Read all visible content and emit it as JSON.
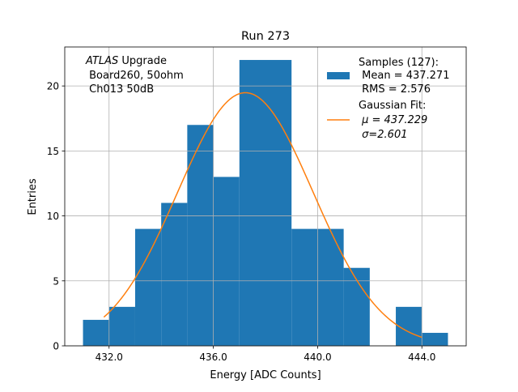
{
  "chart_data": {
    "type": "bar",
    "title": "Run 273",
    "xlabel": "Energy [ADC Counts]",
    "ylabel": "Entries",
    "xlim": [
      430.3,
      445.7
    ],
    "ylim": [
      0,
      23
    ],
    "grid": true,
    "xticks": [
      432,
      436,
      440,
      444
    ],
    "xtick_labels": [
      "432.0",
      "436.0",
      "440.0",
      "444.0"
    ],
    "yticks": [
      0,
      5,
      10,
      15,
      20
    ],
    "ytick_labels": [
      "0",
      "5",
      "10",
      "15",
      "20"
    ],
    "bin_edges": [
      431,
      432,
      433,
      434,
      435,
      436,
      437,
      438,
      439,
      440,
      441,
      442,
      443,
      444,
      445
    ],
    "values": [
      2,
      3,
      9,
      11,
      17,
      13,
      22,
      22,
      9,
      9,
      6,
      0,
      3,
      1
    ],
    "bar_color": "#1f77b4",
    "fit": {
      "type": "gaussian",
      "mu": 437.229,
      "sigma": 2.601,
      "amplitude": 19.48,
      "x_range": [
        431.8,
        444.0
      ],
      "color": "#ff7f0e"
    },
    "annotation": {
      "italic": "ATLAS",
      "line1_rest": " Upgrade",
      "line2": " Board260, 50ohm",
      "line3": " Ch013 50dB"
    },
    "legend": {
      "placement": "top-right",
      "samples": [
        "Samples (127):",
        " Mean = 437.271",
        " RMS = 2.576"
      ],
      "fit": [
        "Gaussian Fit:",
        " μ = 437.229",
        " σ=2.601"
      ]
    }
  }
}
